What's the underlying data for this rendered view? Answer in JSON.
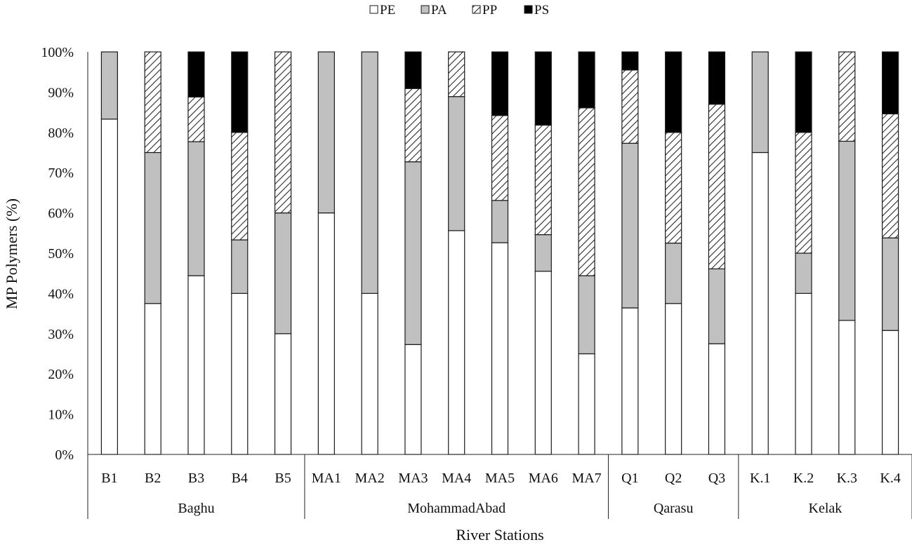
{
  "chart_data": {
    "type": "bar",
    "stacked": "percent",
    "ylabel": "MP Polymers (%)",
    "xlabel": "River Stations",
    "ylim": [
      0,
      100
    ],
    "yticks": [
      "0%",
      "10%",
      "20%",
      "30%",
      "40%",
      "50%",
      "60%",
      "70%",
      "80%",
      "90%",
      "100%"
    ],
    "legend_position": "top-center",
    "categories": [
      "B1",
      "B2",
      "B3",
      "B4",
      "B5",
      "MA1",
      "MA2",
      "MA3",
      "MA4",
      "MA5",
      "MA6",
      "MA7",
      "Q1",
      "Q2",
      "Q3",
      "K.1",
      "K.2",
      "K.3",
      "K.4"
    ],
    "groups": [
      {
        "name": "Baghu",
        "count": 5
      },
      {
        "name": "MohammadAbad",
        "count": 7
      },
      {
        "name": "Qarasu",
        "count": 3
      },
      {
        "name": "Kelak",
        "count": 4
      }
    ],
    "series": [
      {
        "name": "PE",
        "fill": "white",
        "values": [
          83.3,
          37.5,
          44.4,
          40,
          30,
          60,
          40,
          27.3,
          55.6,
          52.6,
          45.5,
          25,
          36.4,
          37.5,
          27.5,
          75,
          40,
          33.3,
          30.8
        ]
      },
      {
        "name": "PA",
        "fill": "gray",
        "values": [
          16.7,
          37.5,
          33.3,
          13.3,
          30,
          40,
          60,
          45.4,
          33.3,
          10.5,
          9.1,
          19.4,
          40.9,
          15,
          18.6,
          25,
          10,
          44.5,
          23
        ]
      },
      {
        "name": "PP",
        "fill": "hatch",
        "values": [
          0,
          25,
          11.1,
          26.7,
          40,
          0,
          0,
          18.2,
          11.1,
          21.1,
          27.2,
          41.7,
          18.2,
          27.5,
          40.9,
          0,
          30,
          22.2,
          30.8
        ]
      },
      {
        "name": "PS",
        "fill": "black",
        "values": [
          0,
          0,
          11.2,
          20,
          0,
          0,
          0,
          9.1,
          0,
          15.8,
          18.2,
          13.9,
          4.5,
          20,
          13,
          0,
          20,
          0,
          15.4
        ]
      }
    ]
  },
  "colors": {
    "PE": "#ffffff",
    "PA": "#c0c0c0",
    "PP_hatch": "#2b2b2b",
    "PS": "#000000",
    "outline": "#1a1a1a"
  }
}
